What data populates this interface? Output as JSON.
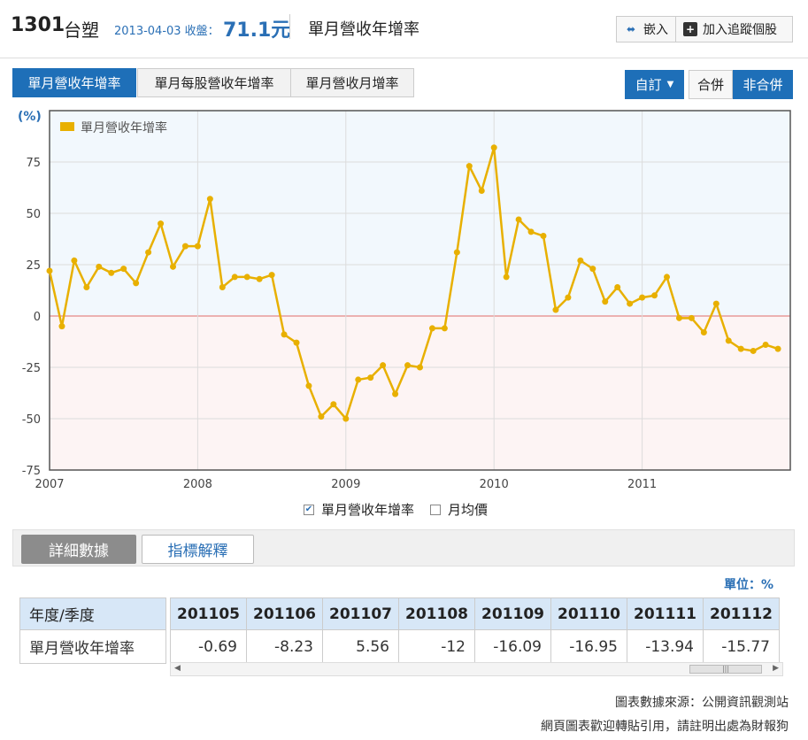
{
  "header": {
    "code": "1301",
    "name": "台塑",
    "date_close": "2013-04-03 收盤：",
    "price": "71.1元",
    "page_title": "單月營收年增率",
    "embed_label": "嵌入",
    "track_label": "加入追蹤個股"
  },
  "tabs": [
    {
      "label": "單月營收年增率"
    },
    {
      "label": "單月每股營收年增率"
    },
    {
      "label": "單月營收月增率"
    }
  ],
  "controls": {
    "custom_label": "自訂",
    "consolidated_label": "合併",
    "nonconsolidated_label": "非合併"
  },
  "colors": {
    "accent": "#1e6fb8",
    "series": "#e8b000",
    "zero_line": "#e89a9a"
  },
  "chart_data": {
    "type": "line",
    "unit_label": "(%)",
    "ylim": [
      -75,
      100
    ],
    "yticks": [
      -75,
      -50,
      -25,
      0,
      25,
      50,
      75
    ],
    "xticks": [
      "2007",
      "2008",
      "2009",
      "2010",
      "2011"
    ],
    "x_start": "2007-01",
    "x_end": "2011-12",
    "series": [
      {
        "name": "單月營收年增率",
        "values": [
          22,
          -5,
          27,
          14,
          24,
          21,
          23,
          16,
          31,
          45,
          24,
          34,
          34,
          57,
          14,
          19,
          19,
          18,
          20,
          -9,
          -13,
          -34,
          -49,
          -43,
          -50,
          -31,
          -30,
          -24,
          -38,
          -24,
          -25,
          -6,
          -6,
          31,
          73,
          61,
          82,
          19,
          47,
          41,
          39,
          3,
          9,
          27,
          23,
          7,
          14,
          6,
          9,
          10,
          19,
          -1,
          -1,
          -8,
          6,
          -12,
          -16,
          -17,
          -14,
          -16
        ]
      }
    ]
  },
  "legend_controls": [
    {
      "label": "單月營收年增率",
      "checked": true
    },
    {
      "label": "月均價",
      "checked": false
    }
  ],
  "detail_tabs": {
    "detail_label": "詳細數據",
    "explain_label": "指標解釋"
  },
  "unit_text": "單位：%",
  "table": {
    "row_header": "年度/季度",
    "row_label": "單月營收年增率",
    "columns": [
      "201105",
      "201106",
      "201107",
      "201108",
      "201109",
      "201110",
      "201111",
      "201112"
    ],
    "values": [
      "-0.69",
      "-8.23",
      "5.56",
      "-12",
      "-16.09",
      "-16.95",
      "-13.94",
      "-15.77"
    ]
  },
  "footer": {
    "source": "圖表數據來源：公開資訊觀測站",
    "note": "網頁圖表歡迎轉貼引用，請註明出處為財報狗"
  }
}
